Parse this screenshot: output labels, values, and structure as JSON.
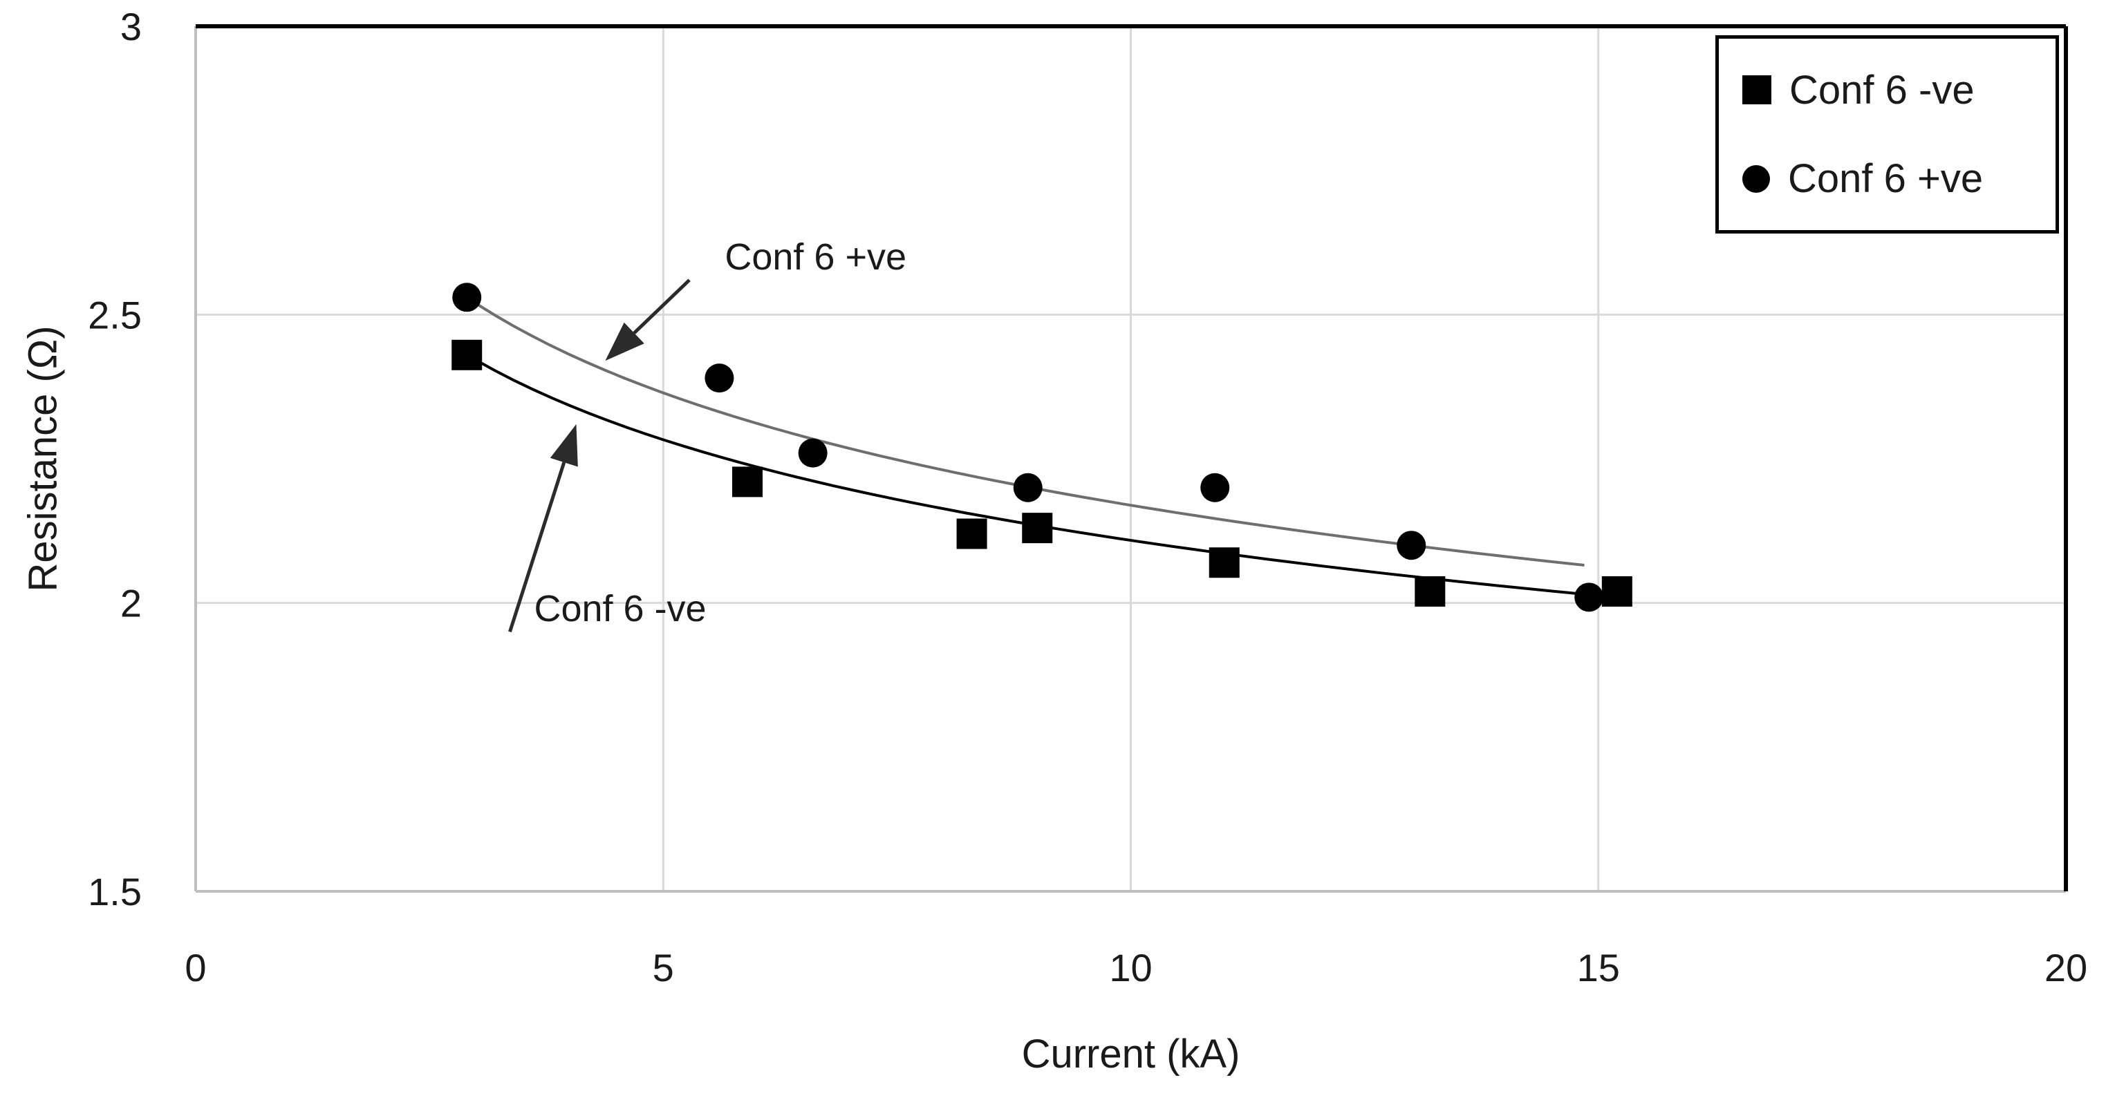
{
  "chart_data": {
    "type": "scatter",
    "title": "",
    "xlabel": "Current (kA)",
    "ylabel": "Resistance (Ω)",
    "xlim": [
      0,
      20
    ],
    "ylim": [
      1.5,
      3
    ],
    "xticks": [
      0,
      5,
      10,
      15,
      20
    ],
    "xtick_labels": [
      "0",
      "5",
      "10",
      "15",
      "20"
    ],
    "yticks": [
      1.5,
      2,
      2.5,
      3
    ],
    "ytick_labels": [
      "1.5",
      "2",
      "2.5",
      "3"
    ],
    "x_gridlines": [
      5,
      10,
      15
    ],
    "y_gridlines": [
      2,
      2.5
    ],
    "grid": true,
    "legend_position": "top-right",
    "series": [
      {
        "name": "Conf 6 -ve",
        "marker": "square",
        "color": "#000000",
        "points": [
          [
            2.9,
            2.43
          ],
          [
            5.9,
            2.21
          ],
          [
            8.3,
            2.12
          ],
          [
            9.0,
            2.13
          ],
          [
            11.0,
            2.07
          ],
          [
            13.2,
            2.02
          ],
          [
            15.2,
            2.02
          ]
        ],
        "trendline": {
          "type": "power",
          "a": 2.746,
          "b": -0.1147,
          "x_start": 3.0,
          "x_end": 15.1,
          "color": "#000000"
        }
      },
      {
        "name": "Conf 6 +ve",
        "marker": "circle",
        "color": "#000000",
        "points": [
          [
            2.9,
            2.53
          ],
          [
            5.6,
            2.39
          ],
          [
            6.6,
            2.26
          ],
          [
            8.9,
            2.2
          ],
          [
            10.9,
            2.2
          ],
          [
            13.0,
            2.1
          ],
          [
            14.9,
            2.01
          ]
        ],
        "trendline": {
          "type": "power",
          "a": 2.887,
          "b": -0.1241,
          "x_start": 3.0,
          "x_end": 14.85,
          "color": "#6e6e6e"
        }
      }
    ],
    "annotations": [
      {
        "text": "Conf 6 +ve",
        "text_x": 6.63,
        "text_y": 2.6,
        "arrow_from_x": 5.28,
        "arrow_from_y": 2.56,
        "arrow_to_x": 4.38,
        "arrow_to_y": 2.42
      },
      {
        "text": "Conf 6 -ve",
        "text_x": 4.54,
        "text_y": 1.99,
        "arrow_from_x": 3.36,
        "arrow_from_y": 1.95,
        "arrow_to_x": 4.07,
        "arrow_to_y": 2.31
      }
    ]
  },
  "legend": {
    "items": [
      {
        "label": "Conf 6 -ve",
        "marker": "square"
      },
      {
        "label": "Conf 6 +ve",
        "marker": "circle"
      }
    ]
  },
  "axis_titles": {
    "x": "Current (kA)",
    "y": "Resistance (Ω)"
  },
  "colors": {
    "gridline": "#d9d9d9",
    "axis_line": "#bfbfbf",
    "plot_border": "#000000",
    "marker": "#000000",
    "trend_neg": "#000000",
    "trend_pos": "#6e6e6e",
    "arrow": "#2b2b2b",
    "text": "#1a1a1a"
  }
}
